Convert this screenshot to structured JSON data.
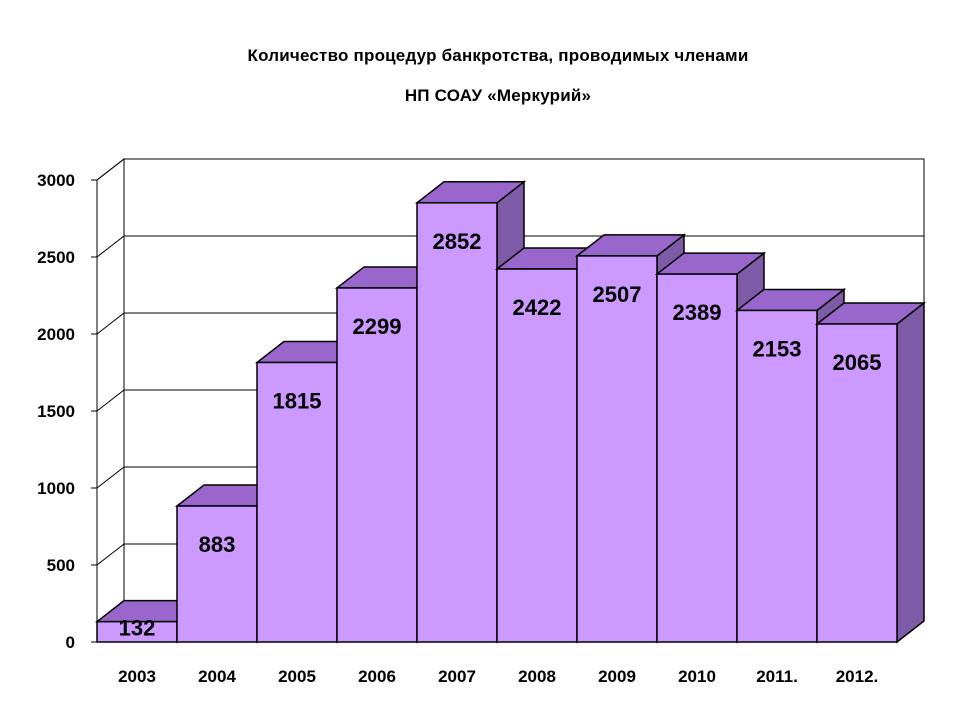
{
  "chart_data": {
    "type": "bar",
    "title": "Количество процедур банкротства,  проводимых членами",
    "subtitle": "НП СОАУ «Меркурий»",
    "categories": [
      "2003",
      "2004",
      "2005",
      "2006",
      "2007",
      "2008",
      "2009",
      "2010",
      "2011.",
      "2012."
    ],
    "values": [
      132,
      883,
      1815,
      2299,
      2852,
      2422,
      2507,
      2389,
      2153,
      2065
    ],
    "data_labels": [
      "132",
      "883",
      "1815",
      "2299",
      "2852",
      "2422",
      "2507",
      "2389",
      "2153",
      "2065"
    ],
    "yticks": [
      "0",
      "500",
      "1000",
      "1500",
      "2000",
      "2500",
      "3000"
    ],
    "ylim": [
      0,
      3000
    ],
    "xlabel": "",
    "ylabel": "",
    "grid": true,
    "legend": "none",
    "style": "3d-column",
    "colors": {
      "front": "#cc99ff",
      "top": "#9966cc",
      "side": "#7d5ba6",
      "grid": "#000000"
    }
  }
}
